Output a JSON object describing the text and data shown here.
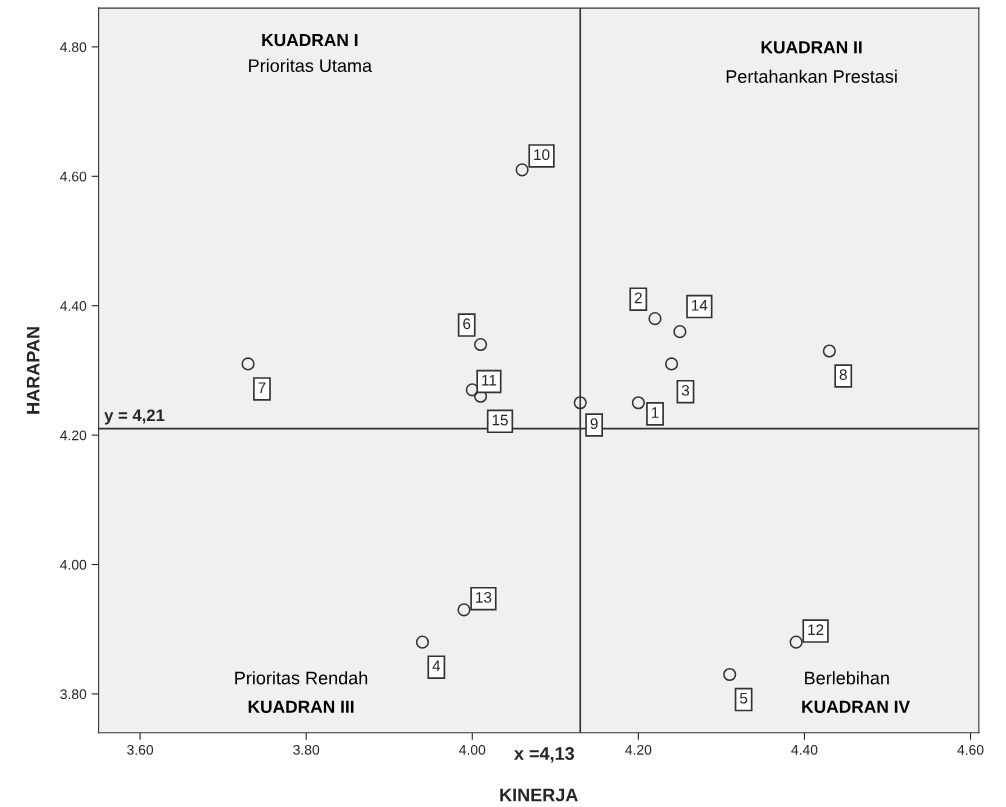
{
  "chart_data": {
    "type": "scatter",
    "xlabel": "KINERJA",
    "ylabel": "HARAPAN",
    "x": [
      4.2,
      4.22,
      4.24,
      3.94,
      4.31,
      4.01,
      3.73,
      4.43,
      4.13,
      4.06,
      4.0,
      4.39,
      3.99,
      4.25,
      4.01
    ],
    "values": [
      4.25,
      4.38,
      4.31,
      3.88,
      3.83,
      4.34,
      4.31,
      4.33,
      4.25,
      4.61,
      4.27,
      3.88,
      3.93,
      4.36,
      4.26
    ],
    "color": "#333333",
    "marker": "circle",
    "grid": false,
    "xlim": [
      3.55,
      4.61
    ],
    "xticks": [
      {
        "value": 3.6,
        "label": "3.60"
      },
      {
        "value": 3.8,
        "label": "3.80"
      },
      {
        "value": 4.0,
        "label": "4.00"
      },
      {
        "value": 4.2,
        "label": "4.20"
      },
      {
        "value": 4.4,
        "label": "4.40"
      },
      {
        "value": 4.6,
        "label": "4.60"
      }
    ],
    "ylim": [
      3.74,
      4.86
    ],
    "yticks": [
      {
        "value": 3.8,
        "label": "3.80"
      },
      {
        "value": 4.0,
        "label": "4.00"
      },
      {
        "value": 4.2,
        "label": "4.20"
      },
      {
        "value": 4.4,
        "label": "4.40"
      },
      {
        "value": 4.6,
        "label": "4.60"
      },
      {
        "value": 4.8,
        "label": "4.80"
      }
    ],
    "ref_lines": [
      {
        "axis": "x",
        "value": 4.13,
        "label": "x =4,13",
        "color": "#333333"
      },
      {
        "axis": "y",
        "value": 4.21,
        "label": "y = 4,21",
        "color": "#333333"
      }
    ],
    "annotations": [
      {
        "text": "1",
        "x": 4.2,
        "y": 4.25
      },
      {
        "text": "2",
        "x": 4.22,
        "y": 4.38
      },
      {
        "text": "3",
        "x": 4.24,
        "y": 4.31
      },
      {
        "text": "4",
        "x": 3.94,
        "y": 3.88
      },
      {
        "text": "5",
        "x": 4.31,
        "y": 3.83
      },
      {
        "text": "6",
        "x": 4.01,
        "y": 4.34
      },
      {
        "text": "7",
        "x": 3.73,
        "y": 4.31
      },
      {
        "text": "8",
        "x": 4.43,
        "y": 4.33
      },
      {
        "text": "9",
        "x": 4.13,
        "y": 4.25
      },
      {
        "text": "10",
        "x": 4.06,
        "y": 4.61
      },
      {
        "text": "11",
        "x": 4.0,
        "y": 4.27
      },
      {
        "text": "12",
        "x": 4.39,
        "y": 3.88
      },
      {
        "text": "13",
        "x": 3.99,
        "y": 3.93
      },
      {
        "text": "14",
        "x": 4.25,
        "y": 4.36
      },
      {
        "text": "15",
        "x": 4.01,
        "y": 4.26
      },
      "KUADRAN I",
      "Prioritas Utama",
      "KUADRAN II",
      "Pertahankan Prestasi",
      "Prioritas Rendah",
      "KUADRAN III",
      "Berlebihan",
      "KUADRAN IV"
    ]
  }
}
